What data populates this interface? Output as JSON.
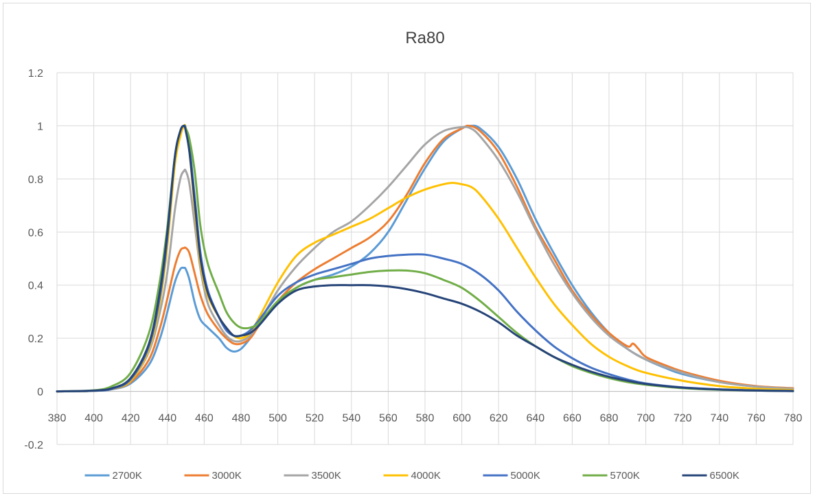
{
  "chart_data": {
    "type": "line",
    "title": "Ra80",
    "xlabel": "",
    "ylabel": "",
    "xlim": [
      380,
      780
    ],
    "ylim": [
      -0.2,
      1.2
    ],
    "x_ticks": [
      380,
      400,
      420,
      440,
      460,
      480,
      500,
      520,
      540,
      560,
      580,
      600,
      620,
      640,
      660,
      680,
      700,
      720,
      740,
      760,
      780
    ],
    "y_ticks": [
      -0.2,
      0,
      0.2,
      0.4,
      0.6,
      0.8,
      1,
      1.2
    ],
    "grid": true,
    "legend_position": "bottom",
    "series": [
      {
        "name": "2700K",
        "color": "#5b9bd5",
        "x": [
          380,
          400,
          410,
          420,
          430,
          436,
          440,
          444,
          447,
          449,
          450,
          452,
          455,
          458,
          462,
          468,
          472,
          476,
          480,
          485,
          490,
          500,
          510,
          520,
          530,
          540,
          550,
          560,
          570,
          580,
          590,
          600,
          605,
          610,
          620,
          630,
          640,
          650,
          660,
          670,
          680,
          690,
          700,
          710,
          720,
          740,
          760,
          780
        ],
        "y": [
          0,
          0.002,
          0.008,
          0.03,
          0.1,
          0.2,
          0.3,
          0.41,
          0.46,
          0.465,
          0.46,
          0.42,
          0.33,
          0.27,
          0.24,
          0.2,
          0.165,
          0.15,
          0.16,
          0.2,
          0.25,
          0.33,
          0.39,
          0.42,
          0.44,
          0.47,
          0.52,
          0.6,
          0.72,
          0.84,
          0.94,
          0.99,
          1.0,
          0.99,
          0.92,
          0.8,
          0.65,
          0.52,
          0.4,
          0.3,
          0.22,
          0.16,
          0.12,
          0.09,
          0.065,
          0.035,
          0.018,
          0.01
        ]
      },
      {
        "name": "3000K",
        "color": "#ed7d31",
        "x": [
          380,
          400,
          410,
          420,
          430,
          436,
          440,
          444,
          447,
          449,
          450,
          452,
          455,
          458,
          462,
          468,
          472,
          476,
          480,
          485,
          490,
          500,
          510,
          520,
          530,
          540,
          550,
          560,
          570,
          580,
          590,
          600,
          604,
          610,
          620,
          630,
          640,
          650,
          660,
          670,
          680,
          690,
          693,
          696,
          700,
          710,
          720,
          740,
          760,
          780
        ],
        "y": [
          0,
          0.002,
          0.009,
          0.035,
          0.12,
          0.24,
          0.35,
          0.47,
          0.53,
          0.54,
          0.54,
          0.52,
          0.44,
          0.36,
          0.29,
          0.23,
          0.2,
          0.18,
          0.18,
          0.2,
          0.25,
          0.34,
          0.41,
          0.46,
          0.5,
          0.54,
          0.58,
          0.64,
          0.74,
          0.86,
          0.95,
          0.99,
          1.0,
          0.98,
          0.9,
          0.77,
          0.62,
          0.5,
          0.38,
          0.29,
          0.22,
          0.17,
          0.18,
          0.16,
          0.13,
          0.1,
          0.075,
          0.04,
          0.02,
          0.012
        ]
      },
      {
        "name": "3500K",
        "color": "#a5a5a5",
        "x": [
          380,
          400,
          410,
          420,
          430,
          436,
          440,
          444,
          447,
          449,
          450,
          452,
          455,
          458,
          462,
          468,
          472,
          476,
          480,
          485,
          490,
          500,
          510,
          520,
          530,
          540,
          550,
          560,
          570,
          580,
          590,
          600,
          605,
          610,
          620,
          630,
          640,
          650,
          660,
          670,
          680,
          690,
          700,
          720,
          740,
          760,
          780
        ],
        "y": [
          0,
          0.002,
          0.01,
          0.04,
          0.15,
          0.3,
          0.45,
          0.68,
          0.8,
          0.83,
          0.83,
          0.78,
          0.62,
          0.46,
          0.33,
          0.25,
          0.21,
          0.19,
          0.19,
          0.21,
          0.26,
          0.38,
          0.47,
          0.54,
          0.6,
          0.64,
          0.7,
          0.77,
          0.85,
          0.93,
          0.98,
          0.995,
          0.99,
          0.96,
          0.87,
          0.75,
          0.61,
          0.48,
          0.37,
          0.28,
          0.21,
          0.16,
          0.12,
          0.07,
          0.035,
          0.018,
          0.01
        ]
      },
      {
        "name": "4000K",
        "color": "#ffc000",
        "x": [
          380,
          400,
          410,
          420,
          430,
          436,
          440,
          444,
          447,
          449,
          450,
          452,
          455,
          458,
          462,
          468,
          472,
          476,
          480,
          485,
          490,
          500,
          510,
          520,
          530,
          540,
          550,
          560,
          570,
          580,
          590,
          595,
          600,
          605,
          610,
          620,
          630,
          640,
          650,
          660,
          670,
          680,
          690,
          700,
          720,
          740,
          760,
          780
        ],
        "y": [
          0,
          0.002,
          0.01,
          0.04,
          0.16,
          0.34,
          0.55,
          0.85,
          0.96,
          1.0,
          0.99,
          0.9,
          0.68,
          0.48,
          0.36,
          0.28,
          0.24,
          0.21,
          0.2,
          0.22,
          0.28,
          0.41,
          0.51,
          0.56,
          0.59,
          0.62,
          0.65,
          0.69,
          0.73,
          0.76,
          0.78,
          0.785,
          0.78,
          0.77,
          0.74,
          0.65,
          0.54,
          0.43,
          0.33,
          0.25,
          0.18,
          0.13,
          0.095,
          0.07,
          0.04,
          0.02,
          0.01,
          0.005
        ]
      },
      {
        "name": "5000K",
        "color": "#4472c4",
        "x": [
          380,
          400,
          410,
          420,
          430,
          436,
          440,
          444,
          447,
          449,
          450,
          452,
          455,
          458,
          462,
          468,
          472,
          476,
          480,
          485,
          490,
          500,
          510,
          520,
          530,
          540,
          550,
          560,
          570,
          580,
          590,
          600,
          610,
          620,
          630,
          640,
          650,
          660,
          670,
          680,
          690,
          700,
          720,
          740,
          760,
          780
        ],
        "y": [
          0,
          0.002,
          0.01,
          0.045,
          0.17,
          0.36,
          0.58,
          0.88,
          0.98,
          1.0,
          0.99,
          0.92,
          0.72,
          0.52,
          0.38,
          0.28,
          0.23,
          0.21,
          0.21,
          0.23,
          0.27,
          0.36,
          0.41,
          0.44,
          0.46,
          0.48,
          0.5,
          0.51,
          0.515,
          0.515,
          0.5,
          0.48,
          0.44,
          0.38,
          0.3,
          0.23,
          0.17,
          0.125,
          0.09,
          0.065,
          0.045,
          0.03,
          0.015,
          0.008,
          0.004,
          0.002
        ]
      },
      {
        "name": "5700K",
        "color": "#70ad47",
        "x": [
          380,
          400,
          410,
          420,
          430,
          436,
          440,
          444,
          447,
          449,
          450,
          452,
          455,
          458,
          462,
          468,
          472,
          476,
          480,
          485,
          490,
          500,
          510,
          520,
          530,
          540,
          550,
          560,
          570,
          580,
          590,
          600,
          610,
          620,
          630,
          640,
          650,
          660,
          670,
          680,
          690,
          700,
          720,
          740,
          760,
          780
        ],
        "y": [
          0,
          0.004,
          0.02,
          0.07,
          0.22,
          0.42,
          0.62,
          0.88,
          0.98,
          1.0,
          0.99,
          0.95,
          0.82,
          0.62,
          0.48,
          0.37,
          0.3,
          0.26,
          0.24,
          0.24,
          0.26,
          0.34,
          0.39,
          0.42,
          0.43,
          0.44,
          0.45,
          0.455,
          0.455,
          0.445,
          0.42,
          0.39,
          0.34,
          0.28,
          0.22,
          0.17,
          0.13,
          0.095,
          0.07,
          0.05,
          0.035,
          0.025,
          0.012,
          0.006,
          0.003,
          0.001
        ]
      },
      {
        "name": "6500K",
        "color": "#264478",
        "x": [
          380,
          400,
          410,
          420,
          430,
          436,
          440,
          444,
          447,
          449,
          450,
          452,
          455,
          458,
          462,
          468,
          472,
          476,
          480,
          485,
          490,
          500,
          510,
          520,
          530,
          540,
          550,
          560,
          570,
          580,
          590,
          600,
          610,
          620,
          630,
          640,
          650,
          660,
          670,
          680,
          690,
          700,
          720,
          740,
          760,
          780
        ],
        "y": [
          0,
          0.003,
          0.012,
          0.05,
          0.18,
          0.38,
          0.6,
          0.88,
          0.98,
          1.0,
          0.98,
          0.9,
          0.7,
          0.5,
          0.37,
          0.28,
          0.24,
          0.21,
          0.21,
          0.22,
          0.25,
          0.33,
          0.38,
          0.395,
          0.4,
          0.4,
          0.4,
          0.395,
          0.385,
          0.37,
          0.35,
          0.33,
          0.3,
          0.26,
          0.21,
          0.17,
          0.13,
          0.1,
          0.075,
          0.055,
          0.04,
          0.028,
          0.014,
          0.007,
          0.003,
          0.001
        ]
      }
    ]
  }
}
